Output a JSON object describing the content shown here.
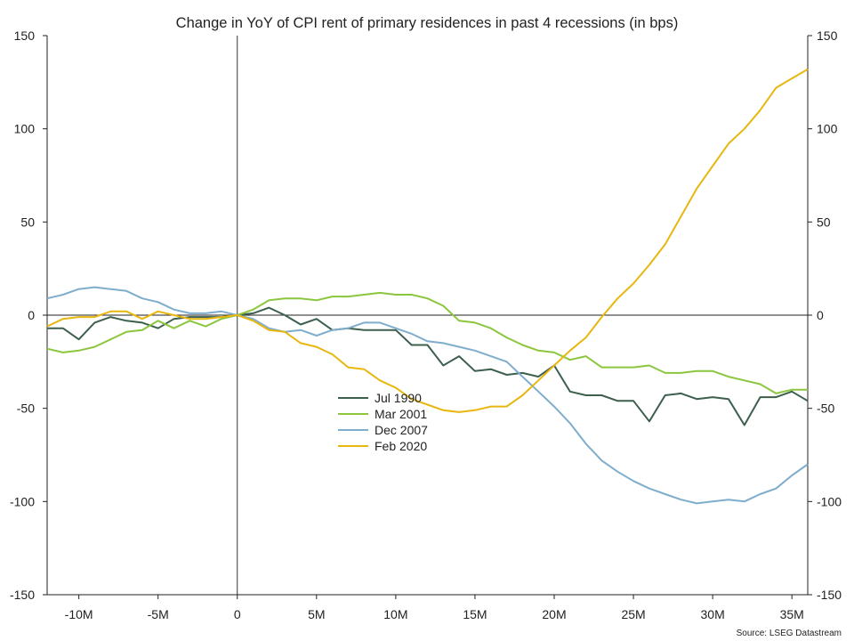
{
  "chart_data": {
    "type": "line",
    "title": "Change in YoY of CPI rent of primary residences in past 4 recessions (in bps)",
    "xlabel": "",
    "ylabel": "",
    "source": "Source: LSEG Datastream",
    "xlim": [
      -12,
      36
    ],
    "ylim": [
      -150,
      150
    ],
    "x_ticks": [
      -10,
      -5,
      0,
      5,
      10,
      15,
      20,
      25,
      30,
      35
    ],
    "x_tick_labels": [
      "-10M",
      "-5M",
      "0",
      "5M",
      "10M",
      "15M",
      "20M",
      "25M",
      "30M",
      "35M"
    ],
    "y_ticks": [
      -150,
      -100,
      -50,
      0,
      50,
      100,
      150
    ],
    "y_tick_labels": [
      "-150",
      "-100",
      "-50",
      "0",
      "50",
      "100",
      "150"
    ],
    "grid": false,
    "legend_position": "center",
    "x": [
      -12,
      -11,
      -10,
      -9,
      -8,
      -7,
      -6,
      -5,
      -4,
      -3,
      -2,
      -1,
      0,
      1,
      2,
      3,
      4,
      5,
      6,
      7,
      8,
      9,
      10,
      11,
      12,
      13,
      14,
      15,
      16,
      17,
      18,
      19,
      20,
      21,
      22,
      23,
      24,
      25,
      26,
      27,
      28,
      29,
      30,
      31,
      32,
      33,
      34,
      35,
      36
    ],
    "series": [
      {
        "name": "Jul 1990",
        "color": "#3d5f4e",
        "values": [
          -7,
          -7,
          -13,
          -4,
          -1,
          -3,
          -4,
          -7,
          -2,
          -1,
          -1,
          -1,
          0,
          1,
          4,
          0,
          -5,
          -2,
          -8,
          -7,
          -8,
          -8,
          -8,
          -16,
          -16,
          -27,
          -22,
          -30,
          -29,
          -32,
          -31,
          -33,
          -27,
          -41,
          -43,
          -43,
          -46,
          -46,
          -57,
          -43,
          -42,
          -45,
          -44,
          -45,
          -59,
          -44,
          -44,
          -41,
          -46
        ]
      },
      {
        "name": "Mar 2001",
        "color": "#8cc63e",
        "values": [
          -18,
          -20,
          -19,
          -17,
          -13,
          -9,
          -8,
          -3,
          -7,
          -3,
          -6,
          -2,
          0,
          3,
          8,
          9,
          9,
          8,
          10,
          10,
          11,
          12,
          11,
          11,
          9,
          5,
          -3,
          -4,
          -7,
          -12,
          -16,
          -19,
          -20,
          -24,
          -22,
          -28,
          -28,
          -28,
          -27,
          -31,
          -31,
          -30,
          -30,
          -33,
          -35,
          -37,
          -42,
          -40,
          -40
        ]
      },
      {
        "name": "Dec 2007",
        "color": "#7fadcc",
        "values": [
          9,
          11,
          14,
          15,
          14,
          13,
          9,
          7,
          3,
          1,
          1,
          2,
          0,
          -2,
          -7,
          -9,
          -8,
          -11,
          -8,
          -7,
          -4,
          -4,
          -7,
          -10,
          -14,
          -15,
          -17,
          -19,
          -22,
          -25,
          -33,
          -41,
          -49,
          -58,
          -69,
          -78,
          -84,
          -89,
          -93,
          -96,
          -99,
          -101,
          -100,
          -99,
          -100,
          -96,
          -93,
          -86,
          -80
        ]
      },
      {
        "name": "Feb 2020",
        "color": "#e8b70f",
        "values": [
          -6,
          -2,
          -1,
          -1,
          2,
          2,
          -2,
          2,
          0,
          -2,
          -2,
          -1,
          0,
          -3,
          -8,
          -9,
          -15,
          -17,
          -21,
          -28,
          -29,
          -35,
          -39,
          -45,
          -48,
          -51,
          -52,
          -51,
          -49,
          -49,
          -43,
          -35,
          -27,
          -19,
          -12,
          -1,
          9,
          17,
          27,
          38,
          53,
          68,
          80,
          92,
          100,
          110,
          122,
          127,
          132
        ]
      }
    ]
  }
}
